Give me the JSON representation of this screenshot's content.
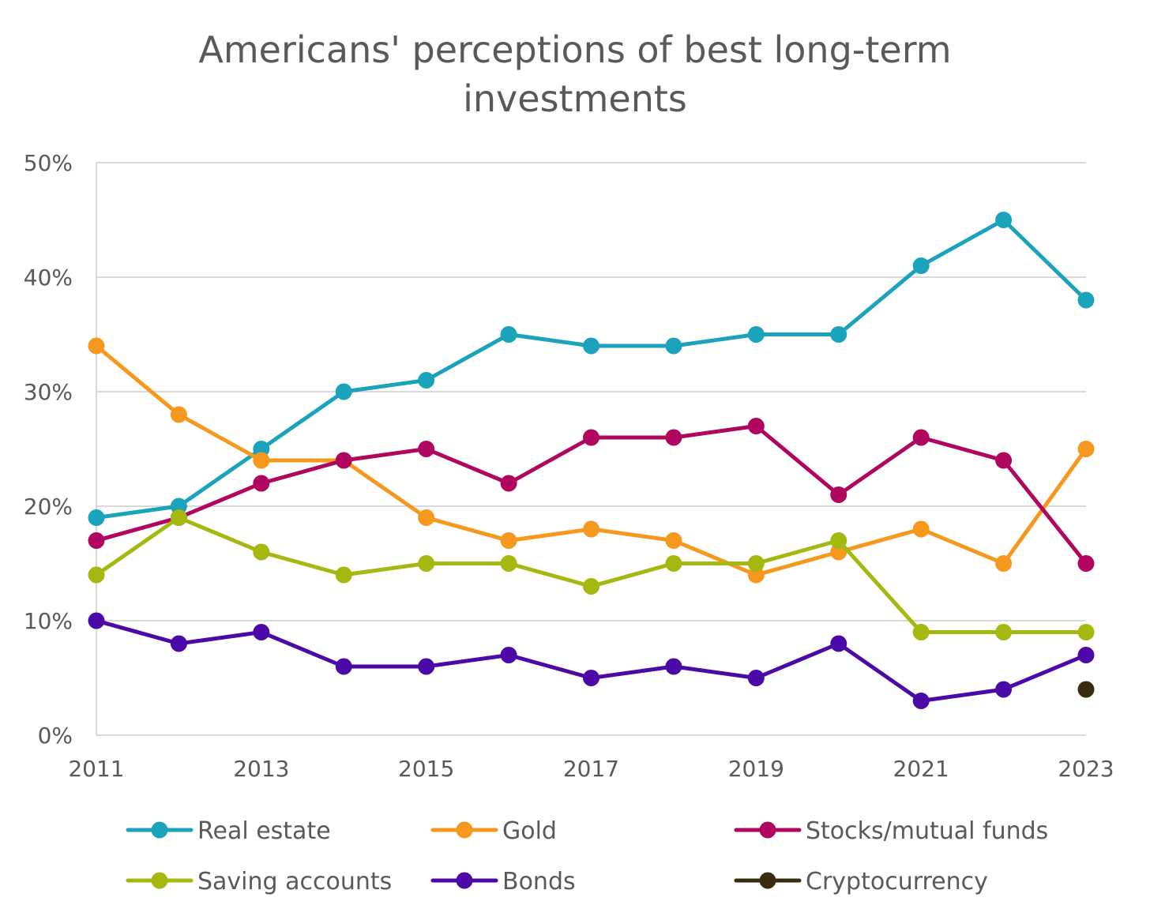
{
  "chart_data": {
    "type": "line",
    "title": "Americans' perceptions of best long-term investments",
    "title_lines": [
      "Americans' perceptions of best long-term",
      "investments"
    ],
    "x": [
      2011,
      2012,
      2013,
      2014,
      2015,
      2016,
      2017,
      2018,
      2019,
      2020,
      2021,
      2022,
      2023
    ],
    "x_tick_labels": [
      "2011",
      "2013",
      "2015",
      "2017",
      "2019",
      "2021",
      "2023"
    ],
    "x_tick_values": [
      2011,
      2013,
      2015,
      2017,
      2019,
      2021,
      2023
    ],
    "y_tick_labels": [
      "0%",
      "10%",
      "20%",
      "30%",
      "40%",
      "50%"
    ],
    "y_tick_values": [
      0,
      10,
      20,
      30,
      40,
      50
    ],
    "ylim": [
      0,
      50
    ],
    "xlim": [
      2011,
      2023
    ],
    "y_unit": "%",
    "grid": "horizontal",
    "legend_position": "bottom",
    "series": [
      {
        "name": "Real estate",
        "color": "#1aa3bb",
        "values": [
          19,
          20,
          25,
          30,
          31,
          35,
          34,
          34,
          35,
          35,
          41,
          45,
          38
        ]
      },
      {
        "name": "Gold",
        "color": "#f5981d",
        "values": [
          34,
          28,
          24,
          24,
          19,
          17,
          18,
          17,
          14,
          16,
          18,
          15,
          25
        ]
      },
      {
        "name": "Stocks/mutual funds",
        "color": "#b0065f",
        "values": [
          17,
          19,
          22,
          24,
          25,
          22,
          26,
          26,
          27,
          21,
          26,
          24,
          15
        ]
      },
      {
        "name": "Saving accounts",
        "color": "#a4b80f",
        "values": [
          14,
          19,
          16,
          14,
          15,
          15,
          13,
          15,
          15,
          17,
          9,
          9,
          9
        ]
      },
      {
        "name": "Bonds",
        "color": "#4b0aa8",
        "values": [
          10,
          8,
          9,
          6,
          6,
          7,
          5,
          6,
          5,
          8,
          3,
          4,
          7
        ]
      },
      {
        "name": "Cryptocurrency",
        "color": "#3a2a10",
        "values": [
          null,
          null,
          null,
          null,
          null,
          null,
          null,
          null,
          null,
          null,
          null,
          null,
          4
        ]
      }
    ]
  }
}
